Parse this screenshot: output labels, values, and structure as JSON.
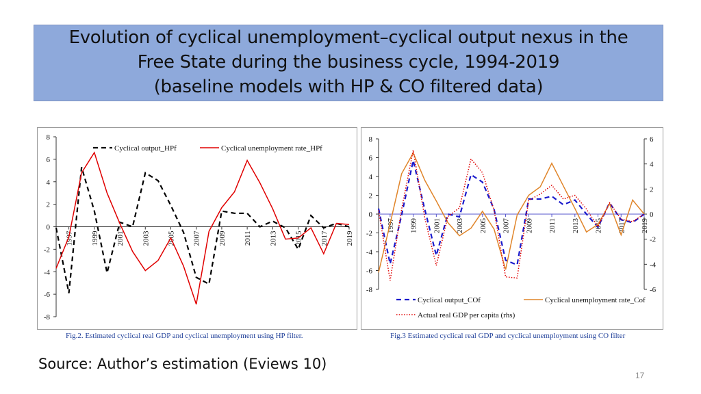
{
  "title": {
    "line1": "Evolution of cyclical unemployment–cyclical output nexus in the",
    "line2": "Free State during the business cycle, 1994-2019",
    "line3": "(baseline models with HP & CO filtered data)"
  },
  "captions": {
    "fig2": "Fig.2. Estimated cyclical real GDP and cyclical unemployment using HP filter.",
    "fig3": "Fig.3 Estimated cyclical real GDP and cyclical unemployment using CO filter"
  },
  "source": "Source: Author’s estimation (Eviews 10)",
  "page_number": "17",
  "colors": {
    "title_bg": "#8ea9db",
    "black_series": "#000000",
    "red_series": "#e00000",
    "blue_series": "#1a1acc",
    "orange_series": "#e0852a",
    "dotted_red": "#e00000",
    "zero_line": "#5555cc"
  },
  "chart_data": [
    {
      "type": "line",
      "x_tick_labels": [
        "1997",
        "1999",
        "2001",
        "2003",
        "2005",
        "2007",
        "2009",
        "2011",
        "2013",
        "2015",
        "2017",
        "2019"
      ],
      "y_tick_labels": [
        "8",
        "6",
        "4",
        "2",
        "0",
        "-2",
        "-4",
        "-6",
        "-8"
      ],
      "ylim": [
        -8,
        8
      ],
      "xlim": [
        1996,
        2019
      ],
      "legend_position": "top",
      "series": [
        {
          "name": "Cyclical output_HPf",
          "style": "dashed",
          "color": "#000000",
          "x": [
            1996,
            1997,
            1998,
            1999,
            2000,
            2001,
            2002,
            2003,
            2004,
            2005,
            2006,
            2007,
            2008,
            2009,
            2010,
            2011,
            2012,
            2013,
            2014,
            2015,
            2016,
            2017,
            2018,
            2019
          ],
          "y": [
            -0.1,
            -5.9,
            5.3,
            1.4,
            -4.1,
            0.4,
            0.0,
            4.8,
            4.1,
            1.9,
            -0.5,
            -4.5,
            -5.1,
            1.4,
            1.2,
            1.2,
            0.0,
            0.5,
            -0.1,
            -2.0,
            1.0,
            -0.1,
            0.3,
            0.0
          ]
        },
        {
          "name": "Cyclical unemployment rate_HPf",
          "style": "solid",
          "color": "#e00000",
          "x": [
            1996,
            1997,
            1998,
            1999,
            2000,
            2001,
            2002,
            2003,
            2004,
            2005,
            2006,
            2007,
            2008,
            2009,
            2010,
            2011,
            2012,
            2013,
            2014,
            2015,
            2016,
            2017,
            2018,
            2019
          ],
          "y": [
            -3.7,
            -0.9,
            4.8,
            6.6,
            3.0,
            0.3,
            -2.2,
            -3.9,
            -3.0,
            -1.0,
            -3.5,
            -6.9,
            -0.4,
            1.7,
            3.1,
            5.9,
            3.9,
            1.6,
            -1.1,
            -1.0,
            -0.1,
            -2.4,
            0.3,
            0.2
          ]
        }
      ]
    },
    {
      "type": "line",
      "x_tick_labels": [
        "1997",
        "1999",
        "2001",
        "2003",
        "2005",
        "2007",
        "2009",
        "2011",
        "2013",
        "2015",
        "2017",
        "2019"
      ],
      "y_tick_labels_left": [
        "8",
        "6",
        "4",
        "2",
        "0",
        "-2",
        "-4",
        "-6",
        "-8"
      ],
      "y_tick_labels_right": [
        "6",
        "4",
        "2",
        "0",
        "-2",
        "-4",
        "-6"
      ],
      "ylim_left": [
        -8,
        8
      ],
      "ylim_right": [
        -6,
        6
      ],
      "xlim": [
        1996,
        2019
      ],
      "legend_position": "bottom",
      "series": [
        {
          "name": "Cyclical output_COf",
          "style": "dashed",
          "color": "#1a1acc",
          "axis": "left",
          "x": [
            1996,
            1997,
            1998,
            1999,
            2000,
            2001,
            2002,
            2003,
            2004,
            2005,
            2006,
            2007,
            2008,
            2009,
            2010,
            2011,
            2012,
            2013,
            2014,
            2015,
            2016,
            2017,
            2018,
            2019
          ],
          "y": [
            0.6,
            -5.3,
            -0.1,
            5.7,
            0.5,
            -4.4,
            0.0,
            -0.3,
            4.2,
            3.4,
            0.5,
            -4.9,
            -5.4,
            1.6,
            1.6,
            1.9,
            1.0,
            1.5,
            0.0,
            -1.4,
            1.2,
            -0.6,
            -0.9,
            0.0
          ]
        },
        {
          "name": "Cyclical unemployment rate_Cof",
          "style": "solid",
          "color": "#e0852a",
          "axis": "left",
          "x": [
            1996,
            1997,
            1998,
            1999,
            2000,
            2001,
            2002,
            2003,
            2004,
            2005,
            2006,
            2007,
            2008,
            2009,
            2010,
            2011,
            2012,
            2013,
            2014,
            2015,
            2016,
            2017,
            2018,
            2019
          ],
          "y": [
            -6.2,
            -1.0,
            4.3,
            6.5,
            3.6,
            1.4,
            -0.9,
            -2.3,
            -1.5,
            0.3,
            -1.6,
            -5.9,
            -0.1,
            2.0,
            2.9,
            5.4,
            3.0,
            0.6,
            -1.9,
            -1.1,
            1.1,
            -2.2,
            1.5,
            0.0
          ]
        },
        {
          "name": "Actual real GDP per capita (rhs)",
          "style": "dotted",
          "color": "#e00000",
          "axis": "right",
          "x": [
            1996,
            1997,
            1998,
            1999,
            2000,
            2001,
            2002,
            2003,
            2004,
            2005,
            2006,
            2007,
            2008,
            2009,
            2010,
            2011,
            2012,
            2013,
            2014,
            2015,
            2016,
            2017,
            2018,
            2019
          ],
          "y": [
            0.3,
            -5.3,
            0.4,
            5.1,
            -0.3,
            -4.1,
            -0.2,
            0.5,
            4.4,
            3.3,
            0.3,
            -5.0,
            -5.1,
            1.1,
            1.6,
            2.3,
            1.2,
            1.5,
            0.4,
            -1.0,
            0.9,
            -0.4,
            -0.6,
            0.0
          ]
        }
      ]
    }
  ]
}
